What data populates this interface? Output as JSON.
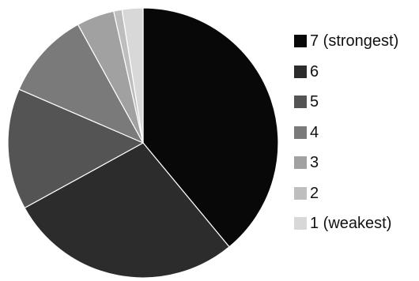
{
  "chart_data": {
    "type": "pie",
    "categories": [
      "7 (strongest)",
      "6",
      "5",
      "4",
      "3",
      "2",
      "1 (weakest)"
    ],
    "values": [
      39,
      28,
      14.5,
      10.5,
      4.5,
      1,
      2.5
    ],
    "colors": [
      "#080808",
      "#2c2c2c",
      "#545454",
      "#7a7a7a",
      "#a1a1a1",
      "#bebebe",
      "#d8d8d8"
    ],
    "start_angle_deg": 0,
    "direction": "clockwise",
    "legend_position": "right"
  }
}
